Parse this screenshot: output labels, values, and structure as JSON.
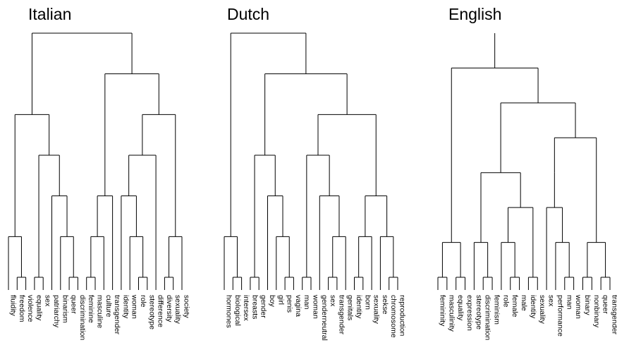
{
  "panels": [
    {
      "title": "Italian",
      "leaves": [
        "fluidity",
        "freedom",
        "violence",
        "equality",
        "sex",
        "patriarchy",
        "binarism",
        "queer",
        "discrimination",
        "feminine",
        "masculine",
        "culture",
        "transgender",
        "identity",
        "woman",
        "role",
        "stereotype",
        "difference",
        "diversity",
        "sexuality",
        "society"
      ],
      "tree": [
        [
          [
            "fluidity",
            [
              "freedom",
              "violence"
            ]
          ],
          [
            [
              "equality",
              "sex"
            ],
            [
              "patriarchy",
              [
                "binarism",
                [
                  "queer",
                  "discrimination"
                ]
              ]
            ]
          ]
        ],
        [
          [
            [
              [
                "feminine",
                "masculine"
              ],
              "culture"
            ],
            "transgender"
          ],
          [
            [
              [
                "identity",
                [
                  "woman",
                  [
                    "role",
                    "stereotype"
                  ]
                ]
              ],
              "difference"
            ],
            [
              [
                "diversity",
                "sexuality"
              ],
              "society"
            ]
          ]
        ]
      ]
    },
    {
      "title": "Dutch",
      "leaves": [
        "hormones",
        "biological",
        "intersex",
        "breasts",
        "gender",
        "boy",
        "girl",
        "penis",
        "vagina",
        "man",
        "woman",
        "genderneutral",
        "sex",
        "transgender",
        "genitals",
        "identity",
        "born",
        "sexuality",
        "sekse",
        "chromosome",
        "reproduction"
      ],
      "tree": [
        [
          "hormones",
          [
            "biological",
            "intersex"
          ]
        ],
        [
          [
            [
              "breasts",
              "gender"
            ],
            [
              "boy",
              [
                "girl",
                [
                  "penis",
                  "vagina"
                ]
              ]
            ]
          ],
          [
            [
              [
                "man",
                "woman"
              ],
              [
                "genderneutral",
                [
                  [
                    "sex",
                    "transgender"
                  ],
                  "genitals"
                ]
              ]
            ],
            [
              [
                [
                  "identity",
                  "born"
                ],
                "sexuality"
              ],
              [
                "sekse",
                [
                  "chromosome",
                  "reproduction"
                ]
              ]
            ]
          ]
        ]
      ]
    },
    {
      "title": "English",
      "leaves": [
        "femininity",
        "masculinity",
        "equality",
        "expression",
        "stereotype",
        "discrimination",
        "feminism",
        "role",
        "female",
        "male",
        "identity",
        "sexuality",
        "sex",
        "performance",
        "man",
        "woman",
        "binary",
        "nonbinary",
        "queer",
        "transgender"
      ],
      "tree": [
        [
          [
            [
              "femininity",
              "masculinity"
            ],
            [
              "equality",
              "expression"
            ]
          ],
          [
            [
              [
                "stereotype",
                [
                  "discrimination",
                  "feminism"
                ]
              ],
              [
                [
                  "role",
                  [
                    "female",
                    "male"
                  ]
                ],
                [
                  "identity",
                  "sexuality"
                ]
              ]
            ],
            [
              [
                [
                  "sex",
                  [
                    "performance",
                    [
                      "man",
                      "woman"
                    ]
                  ]
                ]
              ],
              [
                [
                  "binary",
                  "nonbinary"
                ],
                [
                  "queer",
                  "transgender"
                ]
              ]
            ]
          ]
        ]
      ]
    }
  ]
}
